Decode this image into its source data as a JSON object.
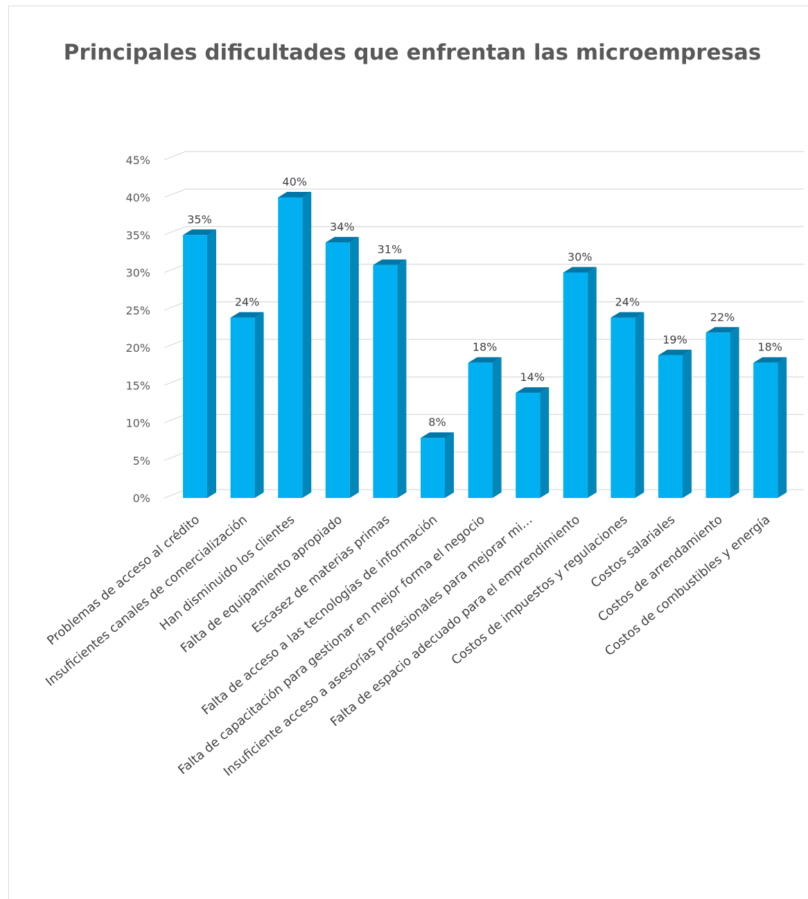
{
  "chart_data": {
    "type": "bar",
    "title": "Principales dificultades que enfrentan las microempresas",
    "xlabel": "",
    "ylabel": "",
    "ylim": [
      0,
      0.45
    ],
    "yticks": [
      "0%",
      "5%",
      "10%",
      "15%",
      "20%",
      "25%",
      "30%",
      "35%",
      "40%",
      "45%"
    ],
    "grid": true,
    "legend": "none",
    "bar_style": "3d-column",
    "colors": {
      "front": "#00b0f0",
      "side": "#0086b8",
      "top": "#0077a8",
      "grid": "#d9d9d9",
      "text": "#595959"
    },
    "categories": [
      "Problemas de acceso al crédito",
      "Insuficientes canales de comercialización",
      "Han disminuido los clientes",
      "Falta de equipamiento apropiado",
      "Escasez de materias primas",
      "Falta de acceso a las tecnologías de información",
      "Falta de capacitación para gestionar en mejor forma el negocio",
      "Insuficiente acceso a asesorías profesionales para mejorar mi…",
      "Falta de espacio adecuado para el emprendimiento",
      "Costos de impuestos y regulaciones",
      "Costos salariales",
      "Costos de arrendamiento",
      "Costos de combustibles y energía"
    ],
    "values": [
      0.35,
      0.24,
      0.4,
      0.34,
      0.31,
      0.08,
      0.18,
      0.14,
      0.3,
      0.24,
      0.19,
      0.22,
      0.18
    ],
    "data_labels": [
      "35%",
      "24%",
      "40%",
      "34%",
      "31%",
      "8%",
      "18%",
      "14%",
      "30%",
      "24%",
      "19%",
      "22%",
      "18%"
    ]
  }
}
